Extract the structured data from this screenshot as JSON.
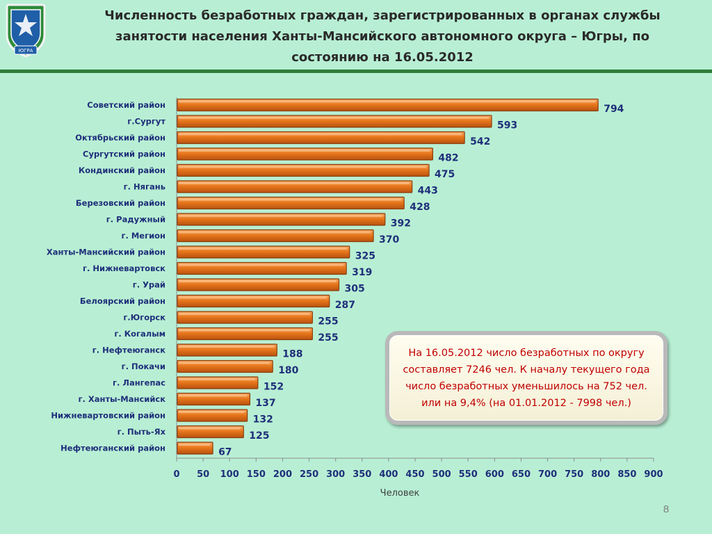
{
  "slide": {
    "title": "Численность безработных граждан, зарегистрированных в органах службы занятости населения Ханты-Мансийского автономного округа – Югры, по состоянию на 16.05.2012",
    "logo_text": "ЮГРА",
    "info_text": "На 16.05.2012 число безработных по округу составляет  7246 чел. К началу текущего года число безработных уменьшилось на 752 чел. или на 9,4% (на 01.01.2012 - 7998 чел.)",
    "page_number": "8"
  },
  "colors": {
    "background": "#b8efd4",
    "rule": "#2f7d3a",
    "bar_fill": "#e8781c",
    "bar_edge": "#8a3e0c",
    "value_labels": "#1f2f7a",
    "category_labels": "#1f2f7a",
    "info_text": "#c00000"
  },
  "chart_data": {
    "type": "bar",
    "orientation": "horizontal",
    "categories": [
      "Советский район",
      "г.Сургут",
      "Октябрьский район",
      "Сургутский район",
      "Кондинский район",
      "г. Нягань",
      "Березовский район",
      "г. Радужный",
      "г. Мегион",
      "Ханты-Мансийский район",
      "г. Нижневартовск",
      "г. Урай",
      "Белоярский район",
      "г.Югорск",
      "г. Когалым",
      "г. Нефтеюганск",
      "г. Покачи",
      "г. Лангепас",
      "г. Ханты-Мансийск",
      "Нижневартовский район",
      "г. Пыть-Ях",
      "Нефтеюганский район"
    ],
    "values": [
      794,
      593,
      542,
      482,
      475,
      443,
      428,
      392,
      370,
      325,
      319,
      305,
      287,
      255,
      255,
      188,
      180,
      152,
      137,
      132,
      125,
      67
    ],
    "xlabel": "Человек",
    "ylabel": "",
    "xlim": [
      0,
      900
    ],
    "xticks": [
      0,
      50,
      100,
      150,
      200,
      250,
      300,
      350,
      400,
      450,
      500,
      550,
      600,
      650,
      700,
      750,
      800,
      850,
      900
    ],
    "grid": false,
    "data_labels": true
  }
}
